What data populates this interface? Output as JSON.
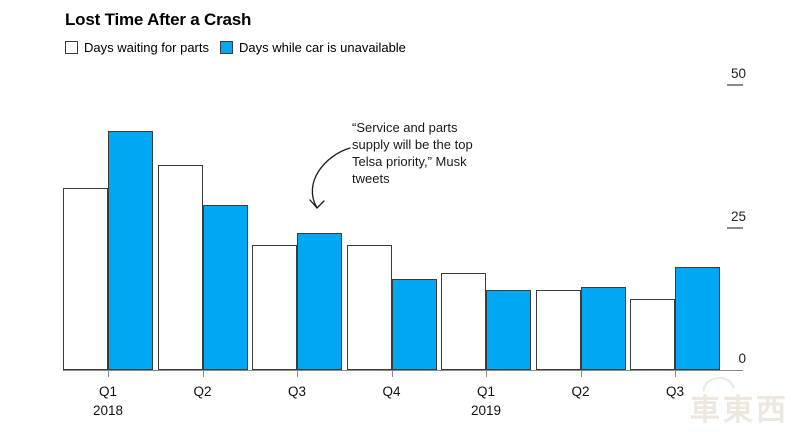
{
  "header": {
    "title": "Lost Time After a Crash"
  },
  "legend": {
    "items": [
      {
        "label": "Days waiting for parts",
        "swatch": "outlined",
        "color": "#ffffff"
      },
      {
        "label": "Days while car is unavailable",
        "swatch": "filled",
        "color": "#00a7f2"
      }
    ]
  },
  "annotation": {
    "text": "“Service and parts\nsupply will be the top\nTelsa priority,” Musk\ntweets"
  },
  "watermark": {
    "text": "車東西"
  },
  "chart_data": {
    "type": "bar",
    "title": "Lost Time After a Crash",
    "categories": [
      "Q1 2018",
      "Q2 2018",
      "Q3 2018",
      "Q4 2018",
      "Q1 2019",
      "Q2 2019",
      "Q3 2019"
    ],
    "x_tick_labels": [
      "Q1",
      "Q2",
      "Q3",
      "Q4",
      "Q1",
      "Q2",
      "Q3"
    ],
    "x_year_labels": [
      {
        "index": 0,
        "label": "2018"
      },
      {
        "index": 4,
        "label": "2019"
      }
    ],
    "series": [
      {
        "name": "Days waiting for parts",
        "fill": "#ffffff",
        "values": [
          32,
          36,
          22,
          22,
          17,
          14,
          12.5
        ]
      },
      {
        "name": "Days while car is unavailable",
        "fill": "#00a7f2",
        "values": [
          42,
          29,
          24,
          16,
          14,
          14.5,
          18
        ]
      }
    ],
    "ylabel": "",
    "xlabel": "",
    "y_ticks": [
      0,
      25,
      50
    ],
    "ylim": [
      0,
      50
    ],
    "grid": false,
    "legend_position": "top-left",
    "y_axis_side": "right",
    "bar_outline_color": "#3c3c3c",
    "axis_color": "#8a8a8a"
  }
}
